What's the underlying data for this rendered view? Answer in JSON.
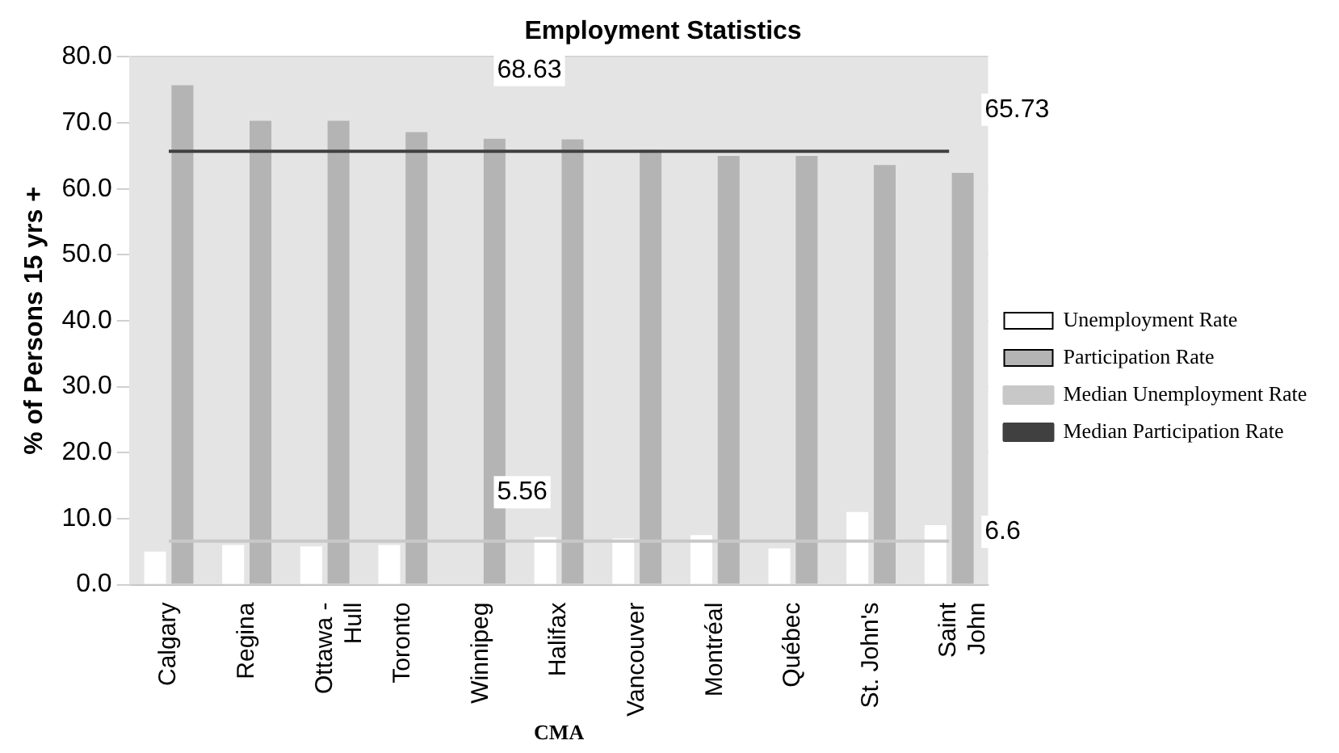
{
  "chart_data": {
    "type": "bar",
    "title": "Employment Statistics",
    "xlabel": "CMA",
    "ylabel": "% of Persons 15 yrs +",
    "categories": [
      "Calgary",
      "Regina",
      "Ottawa - Hull",
      "Toronto",
      "Winnipeg",
      "Halifax",
      "Vancouver",
      "Montréal",
      "Québec",
      "St. John's",
      "Saint John"
    ],
    "series": [
      {
        "name": "Unemployment Rate",
        "color": "#ffffff",
        "values": [
          5.0,
          6.0,
          5.8,
          6.0,
          null,
          7.2,
          7.0,
          7.5,
          5.5,
          11.0,
          9.0
        ]
      },
      {
        "name": "Participation Rate",
        "color": "#b4b4b4",
        "values": [
          75.7,
          70.3,
          70.3,
          68.6,
          67.6,
          67.5,
          65.9,
          65.0,
          65.0,
          63.6,
          62.4
        ]
      },
      {
        "name": "Median Unemployment Rate",
        "type": "line",
        "color": "#c8c8c8",
        "values": [
          6.6,
          6.6,
          6.6,
          6.6,
          6.6,
          6.6,
          6.6,
          6.6,
          6.6,
          6.6,
          6.6
        ]
      },
      {
        "name": "Median Participation Rate",
        "type": "line",
        "color": "#404040",
        "values": [
          65.7,
          65.7,
          65.7,
          65.7,
          65.7,
          65.7,
          65.7,
          65.7,
          65.7,
          65.7,
          65.7
        ]
      }
    ],
    "annotations": [
      "68.63",
      "65.73",
      "5.56",
      "6.6"
    ],
    "ylim": [
      0,
      80
    ],
    "yticks": [
      {
        "value": 0,
        "label": "0.0"
      },
      {
        "value": 10,
        "label": "10.0"
      },
      {
        "value": 20,
        "label": "20.0"
      },
      {
        "value": 30,
        "label": "30.0"
      },
      {
        "value": 40,
        "label": "40.0"
      },
      {
        "value": 50,
        "label": "50.0"
      },
      {
        "value": 60,
        "label": "60.0"
      },
      {
        "value": 70,
        "label": "70.0"
      },
      {
        "value": 80,
        "label": "80.0"
      }
    ],
    "grid": "y",
    "legend": "right",
    "marker": "none"
  }
}
